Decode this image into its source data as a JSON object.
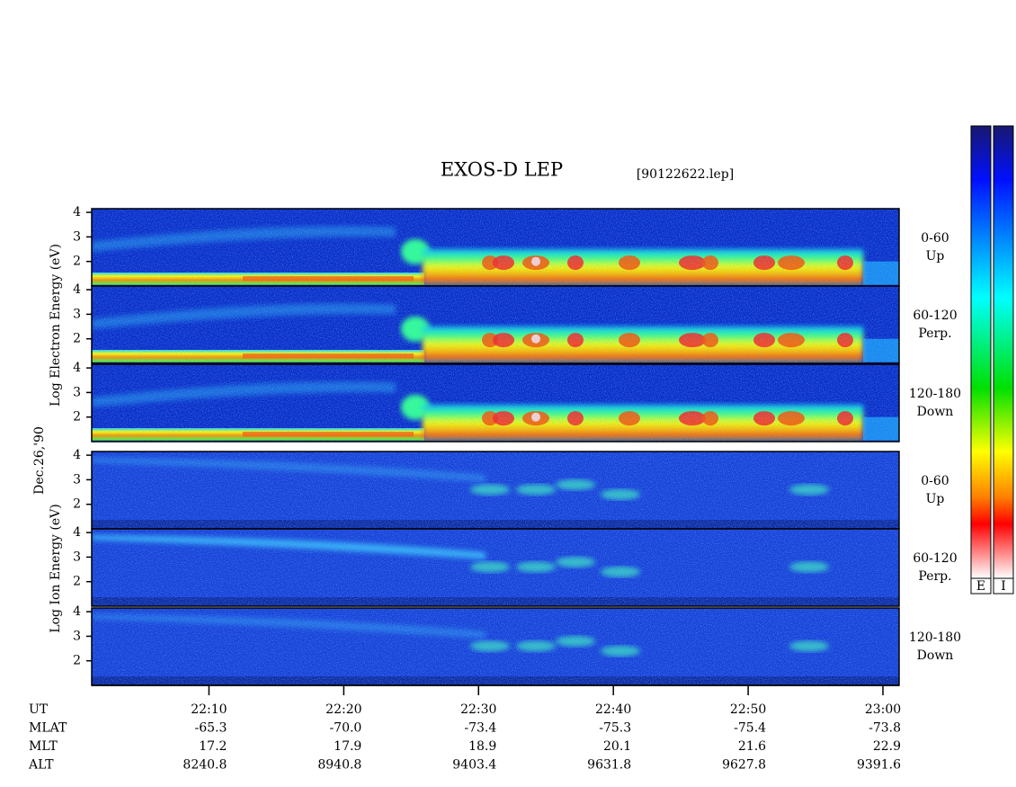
{
  "chart_data": {
    "type": "spectrogram",
    "title": "EXOS-D LEP",
    "file": "[90122622.lep]",
    "date": "Dec.26,'90",
    "ylim": [
      1,
      4.15
    ],
    "yticks": [
      2,
      3,
      4
    ],
    "groups": [
      {
        "ylabel": "Log  Electron  Energy (eV)",
        "colorbar": "E",
        "panels": [
          {
            "name": "0-60",
            "sub": "Up"
          },
          {
            "name": "60-120",
            "sub": "Perp."
          },
          {
            "name": "120-180",
            "sub": "Down"
          }
        ]
      },
      {
        "ylabel": "Log  Ion  Energy (eV)",
        "colorbar": "I",
        "panels": [
          {
            "name": "0-60",
            "sub": "Up"
          },
          {
            "name": "60-120",
            "sub": "Perp."
          },
          {
            "name": "120-180",
            "sub": "Down"
          }
        ]
      }
    ],
    "xlim": [
      1.3,
      61.2
    ],
    "xticks": [
      {
        "value": 10,
        "label": "22:10"
      },
      {
        "value": 20,
        "label": "22:20"
      },
      {
        "value": 30,
        "label": "22:30"
      },
      {
        "value": 40,
        "label": "22:40"
      },
      {
        "value": 50,
        "label": "22:50"
      },
      {
        "value": 60,
        "label": "23:00"
      }
    ],
    "ephemeris": [
      {
        "name": "UT"
      },
      {
        "name": "MLAT",
        "values": [
          "-65.3",
          "-70.0",
          "-73.4",
          "-75.3",
          "-75.4",
          "-73.8"
        ]
      },
      {
        "name": "MLT",
        "values": [
          "17.2",
          "17.9",
          "18.9",
          "20.1",
          "21.6",
          "22.9"
        ]
      },
      {
        "name": "ALT",
        "values": [
          "8240.8",
          "8940.8",
          "9403.4",
          "9631.8",
          "9627.8",
          "9391.6"
        ]
      }
    ]
  }
}
